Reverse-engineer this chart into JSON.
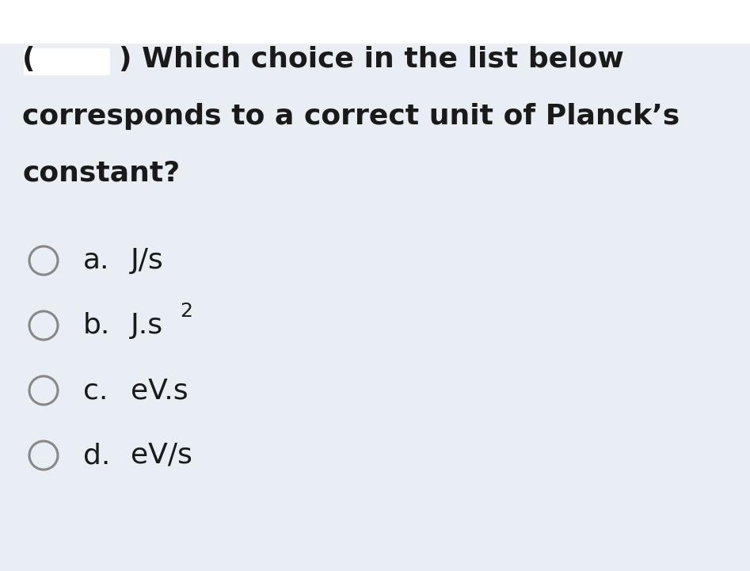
{
  "bg_color": "#e8eef4",
  "white_box_color": "#ffffff",
  "redact_color": "#ffffff",
  "text_color": "#1a1a1a",
  "circle_edge_color": "#888888",
  "question_lines": [
    "Which choice in the list below",
    "corresponds to a correct unit of Planck’s",
    "constant?"
  ],
  "options": [
    {
      "label": "a.",
      "main": "J/s",
      "sup": null
    },
    {
      "label": "b.",
      "main": "J.s",
      "sup": "2"
    },
    {
      "label": "c.",
      "main": "eV.s",
      "sup": null
    },
    {
      "label": "d.",
      "main": "eV/s",
      "sup": null
    }
  ],
  "fig_w": 9.47,
  "fig_h": 7.21,
  "dpi": 100
}
